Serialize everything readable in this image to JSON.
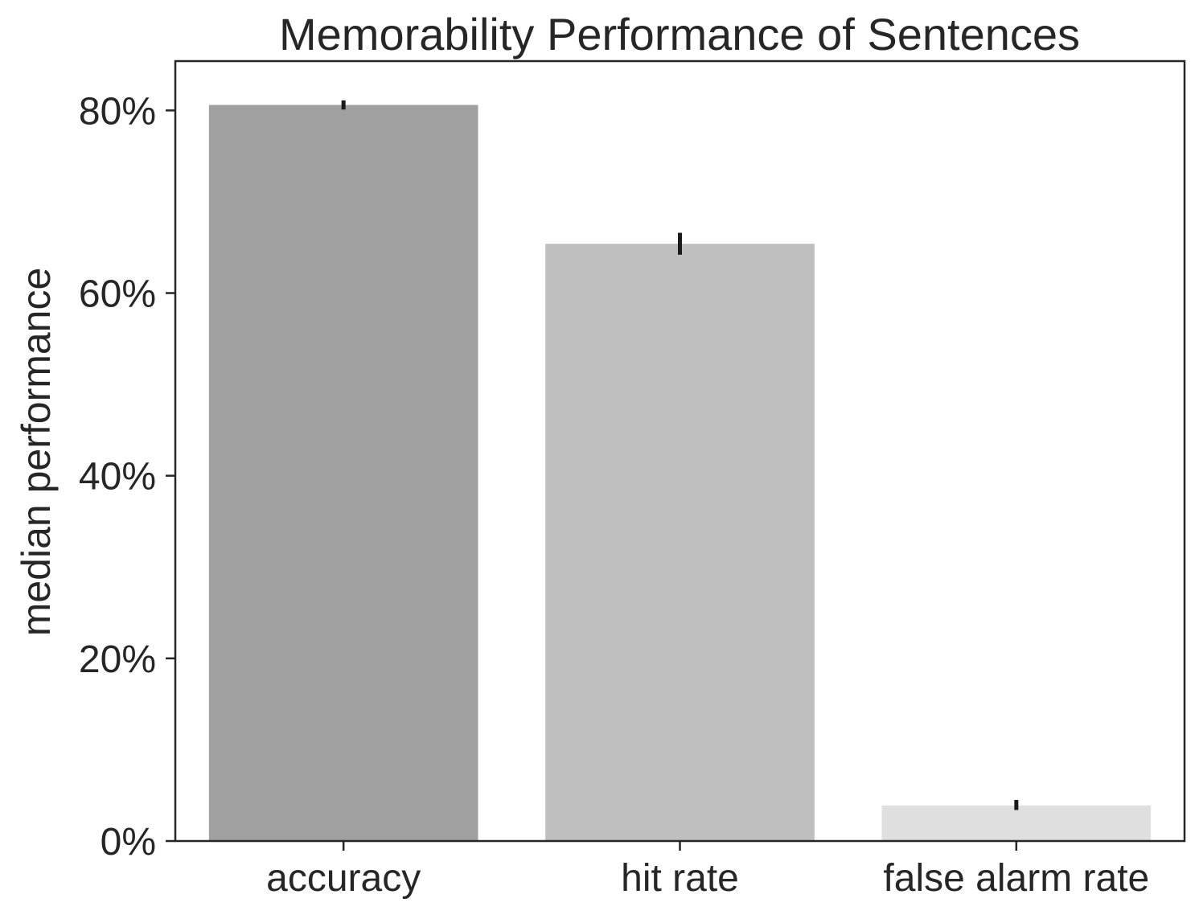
{
  "chart_data": {
    "type": "bar",
    "title": "Memorability Performance of Sentences",
    "xlabel": "",
    "ylabel": "median performance",
    "categories": [
      "accuracy",
      "hit rate",
      "false alarm rate"
    ],
    "values": [
      80.6,
      65.4,
      3.9
    ],
    "error_bars": [
      {
        "low": 80.1,
        "high": 81.1
      },
      {
        "low": 64.2,
        "high": 66.6
      },
      {
        "low": 3.4,
        "high": 4.5
      }
    ],
    "ylim": [
      0,
      85.4
    ],
    "yticks": [
      0,
      20,
      40,
      60,
      80
    ],
    "ytick_labels": [
      "0%",
      "20%",
      "40%",
      "60%",
      "80%"
    ],
    "grid": false,
    "legend": "none",
    "colors": [
      "#a0a0a0",
      "#bfbfbf",
      "#dfdfdf"
    ],
    "error_color": "#1a1a1a"
  }
}
